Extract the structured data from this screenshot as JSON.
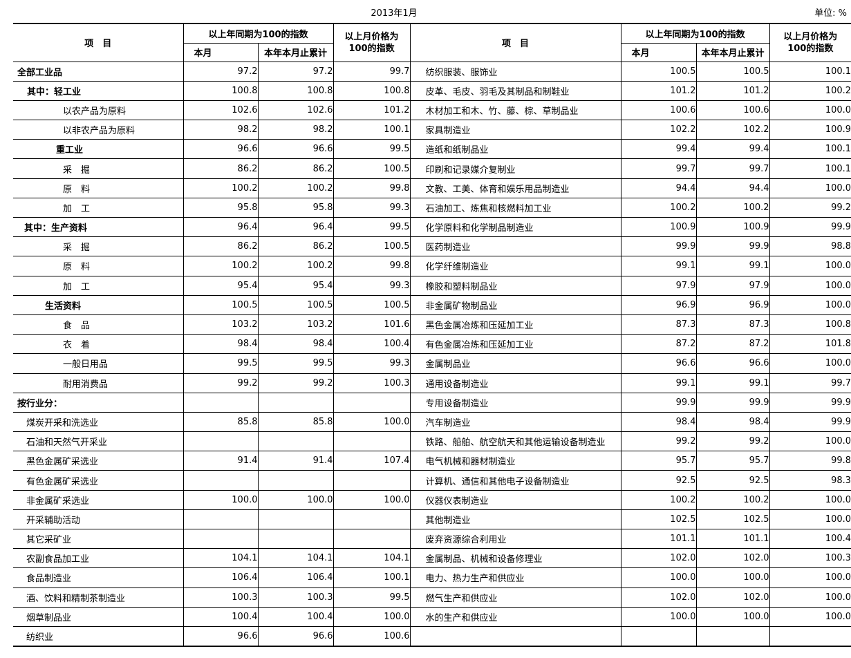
{
  "page": {
    "title": "2013年1月",
    "unit": "单位: %"
  },
  "header": {
    "item": "项　目",
    "yoy_group": "以上年同期为100的指数",
    "month": "本月",
    "cumulative": "本年本月止累计",
    "mom_line1": "以上月价格为",
    "mom_line2": "100的指数"
  },
  "left_rows": [
    {
      "label": "全部工业品",
      "indent": 6,
      "bold": true,
      "month": "97.2",
      "cumulative": "97.2",
      "mom": "99.7"
    },
    {
      "label": "其中：轻工业",
      "indent": 20,
      "bold": true,
      "month": "100.8",
      "cumulative": "100.8",
      "mom": "100.8"
    },
    {
      "label": "以农产品为原料",
      "indent": 72,
      "bold": false,
      "month": "102.6",
      "cumulative": "102.6",
      "mom": "101.2"
    },
    {
      "label": "以非农产品为原料",
      "indent": 72,
      "bold": false,
      "month": "98.2",
      "cumulative": "98.2",
      "mom": "100.1"
    },
    {
      "label": "重工业",
      "indent": 62,
      "bold": true,
      "month": "96.6",
      "cumulative": "96.6",
      "mom": "99.5"
    },
    {
      "label": "采　掘",
      "indent": 72,
      "bold": false,
      "month": "86.2",
      "cumulative": "86.2",
      "mom": "100.5"
    },
    {
      "label": "原　料",
      "indent": 72,
      "bold": false,
      "month": "100.2",
      "cumulative": "100.2",
      "mom": "99.8"
    },
    {
      "label": "加　工",
      "indent": 72,
      "bold": false,
      "month": "95.8",
      "cumulative": "95.8",
      "mom": "99.3"
    },
    {
      "label": "其中：生产资料",
      "indent": 16,
      "bold": true,
      "month": "96.4",
      "cumulative": "96.4",
      "mom": "99.5"
    },
    {
      "label": "采　掘",
      "indent": 72,
      "bold": false,
      "month": "86.2",
      "cumulative": "86.2",
      "mom": "100.5"
    },
    {
      "label": "原　料",
      "indent": 72,
      "bold": false,
      "month": "100.2",
      "cumulative": "100.2",
      "mom": "99.8"
    },
    {
      "label": "加　工",
      "indent": 72,
      "bold": false,
      "month": "95.4",
      "cumulative": "95.4",
      "mom": "99.3"
    },
    {
      "label": "生活资料",
      "indent": 46,
      "bold": true,
      "month": "100.5",
      "cumulative": "100.5",
      "mom": "100.5"
    },
    {
      "label": "食　品",
      "indent": 72,
      "bold": false,
      "month": "103.2",
      "cumulative": "103.2",
      "mom": "101.6"
    },
    {
      "label": "衣　着",
      "indent": 72,
      "bold": false,
      "month": "98.4",
      "cumulative": "98.4",
      "mom": "100.4"
    },
    {
      "label": "一般日用品",
      "indent": 72,
      "bold": false,
      "month": "99.5",
      "cumulative": "99.5",
      "mom": "99.3"
    },
    {
      "label": "耐用消费品",
      "indent": 72,
      "bold": false,
      "month": "99.2",
      "cumulative": "99.2",
      "mom": "100.3"
    },
    {
      "label": "按行业分：",
      "indent": 6,
      "bold": true,
      "month": "",
      "cumulative": "",
      "mom": ""
    },
    {
      "label": "煤炭开采和洗选业",
      "indent": 19,
      "bold": false,
      "month": "85.8",
      "cumulative": "85.8",
      "mom": "100.0"
    },
    {
      "label": "石油和天然气开采业",
      "indent": 19,
      "bold": false,
      "month": "",
      "cumulative": "",
      "mom": ""
    },
    {
      "label": "黑色金属矿采选业",
      "indent": 19,
      "bold": false,
      "month": "91.4",
      "cumulative": "91.4",
      "mom": "107.4"
    },
    {
      "label": "有色金属矿采选业",
      "indent": 19,
      "bold": false,
      "month": "",
      "cumulative": "",
      "mom": ""
    },
    {
      "label": "非金属矿采选业",
      "indent": 19,
      "bold": false,
      "month": "100.0",
      "cumulative": "100.0",
      "mom": "100.0"
    },
    {
      "label": "开采辅助活动",
      "indent": 19,
      "bold": false,
      "month": "",
      "cumulative": "",
      "mom": ""
    },
    {
      "label": "其它采矿业",
      "indent": 19,
      "bold": false,
      "month": "",
      "cumulative": "",
      "mom": ""
    },
    {
      "label": "农副食品加工业",
      "indent": 19,
      "bold": false,
      "month": "104.1",
      "cumulative": "104.1",
      "mom": "104.1"
    },
    {
      "label": "食品制造业",
      "indent": 19,
      "bold": false,
      "month": "106.4",
      "cumulative": "106.4",
      "mom": "100.1"
    },
    {
      "label": "酒、饮料和精制茶制造业",
      "indent": 19,
      "bold": false,
      "month": "100.3",
      "cumulative": "100.3",
      "mom": "99.5"
    },
    {
      "label": "烟草制品业",
      "indent": 19,
      "bold": false,
      "month": "100.4",
      "cumulative": "100.4",
      "mom": "100.0"
    },
    {
      "label": "纺织业",
      "indent": 19,
      "bold": false,
      "month": "96.6",
      "cumulative": "96.6",
      "mom": "100.6"
    }
  ],
  "right_rows": [
    {
      "label": "纺织服装、服饰业",
      "indent": 22,
      "bold": false,
      "month": "100.5",
      "cumulative": "100.5",
      "mom": "100.1"
    },
    {
      "label": "皮革、毛皮、羽毛及其制品和制鞋业",
      "indent": 22,
      "bold": false,
      "month": "101.2",
      "cumulative": "101.2",
      "mom": "100.2"
    },
    {
      "label": "木材加工和木、竹、藤、棕、草制品业",
      "indent": 22,
      "bold": false,
      "month": "100.6",
      "cumulative": "100.6",
      "mom": "100.0"
    },
    {
      "label": "家具制造业",
      "indent": 22,
      "bold": false,
      "month": "102.2",
      "cumulative": "102.2",
      "mom": "100.9"
    },
    {
      "label": "造纸和纸制品业",
      "indent": 22,
      "bold": false,
      "month": "99.4",
      "cumulative": "99.4",
      "mom": "100.1"
    },
    {
      "label": "印刷和记录媒介复制业",
      "indent": 22,
      "bold": false,
      "month": "99.7",
      "cumulative": "99.7",
      "mom": "100.1"
    },
    {
      "label": "文教、工美、体育和娱乐用品制造业",
      "indent": 22,
      "bold": false,
      "month": "94.4",
      "cumulative": "94.4",
      "mom": "100.0"
    },
    {
      "label": "石油加工、炼焦和核燃料加工业",
      "indent": 22,
      "bold": false,
      "month": "100.2",
      "cumulative": "100.2",
      "mom": "99.2"
    },
    {
      "label": "化学原料和化学制品制造业",
      "indent": 22,
      "bold": false,
      "month": "100.9",
      "cumulative": "100.9",
      "mom": "99.9"
    },
    {
      "label": "医药制造业",
      "indent": 22,
      "bold": false,
      "month": "99.9",
      "cumulative": "99.9",
      "mom": "98.8"
    },
    {
      "label": "化学纤维制造业",
      "indent": 22,
      "bold": false,
      "month": "99.1",
      "cumulative": "99.1",
      "mom": "100.0"
    },
    {
      "label": "橡胶和塑料制品业",
      "indent": 22,
      "bold": false,
      "month": "97.9",
      "cumulative": "97.9",
      "mom": "100.0"
    },
    {
      "label": "非金属矿物制品业",
      "indent": 22,
      "bold": false,
      "month": "96.9",
      "cumulative": "96.9",
      "mom": "100.0"
    },
    {
      "label": "黑色金属冶炼和压延加工业",
      "indent": 22,
      "bold": false,
      "month": "87.3",
      "cumulative": "87.3",
      "mom": "100.8"
    },
    {
      "label": "有色金属冶炼和压延加工业",
      "indent": 22,
      "bold": false,
      "month": "87.2",
      "cumulative": "87.2",
      "mom": "101.8"
    },
    {
      "label": "金属制品业",
      "indent": 22,
      "bold": false,
      "month": "96.6",
      "cumulative": "96.6",
      "mom": "100.0"
    },
    {
      "label": "通用设备制造业",
      "indent": 22,
      "bold": false,
      "month": "99.1",
      "cumulative": "99.1",
      "mom": "99.7"
    },
    {
      "label": "专用设备制造业",
      "indent": 22,
      "bold": false,
      "month": "99.9",
      "cumulative": "99.9",
      "mom": "99.9"
    },
    {
      "label": "汽车制造业",
      "indent": 22,
      "bold": false,
      "month": "98.4",
      "cumulative": "98.4",
      "mom": "99.9"
    },
    {
      "label": "铁路、船舶、航空航天和其他运输设备制造业",
      "indent": 22,
      "bold": false,
      "month": "99.2",
      "cumulative": "99.2",
      "mom": "100.0"
    },
    {
      "label": "电气机械和器材制造业",
      "indent": 22,
      "bold": false,
      "month": "95.7",
      "cumulative": "95.7",
      "mom": "99.8"
    },
    {
      "label": "计算机、通信和其他电子设备制造业",
      "indent": 22,
      "bold": false,
      "month": "92.5",
      "cumulative": "92.5",
      "mom": "98.3"
    },
    {
      "label": "仪器仪表制造业",
      "indent": 22,
      "bold": false,
      "month": "100.2",
      "cumulative": "100.2",
      "mom": "100.0"
    },
    {
      "label": "其他制造业",
      "indent": 22,
      "bold": false,
      "month": "102.5",
      "cumulative": "102.5",
      "mom": "100.0"
    },
    {
      "label": "废弃资源综合利用业",
      "indent": 22,
      "bold": false,
      "month": "101.1",
      "cumulative": "101.1",
      "mom": "100.4"
    },
    {
      "label": "金属制品、机械和设备修理业",
      "indent": 22,
      "bold": false,
      "month": "102.0",
      "cumulative": "102.0",
      "mom": "100.3"
    },
    {
      "label": "电力、热力生产和供应业",
      "indent": 22,
      "bold": false,
      "month": "100.0",
      "cumulative": "100.0",
      "mom": "100.0"
    },
    {
      "label": "燃气生产和供应业",
      "indent": 22,
      "bold": false,
      "month": "102.0",
      "cumulative": "102.0",
      "mom": "100.0"
    },
    {
      "label": "水的生产和供应业",
      "indent": 22,
      "bold": false,
      "month": "100.0",
      "cumulative": "100.0",
      "mom": "100.0"
    },
    {
      "label": "",
      "indent": 22,
      "bold": false,
      "month": "",
      "cumulative": "",
      "mom": ""
    }
  ]
}
